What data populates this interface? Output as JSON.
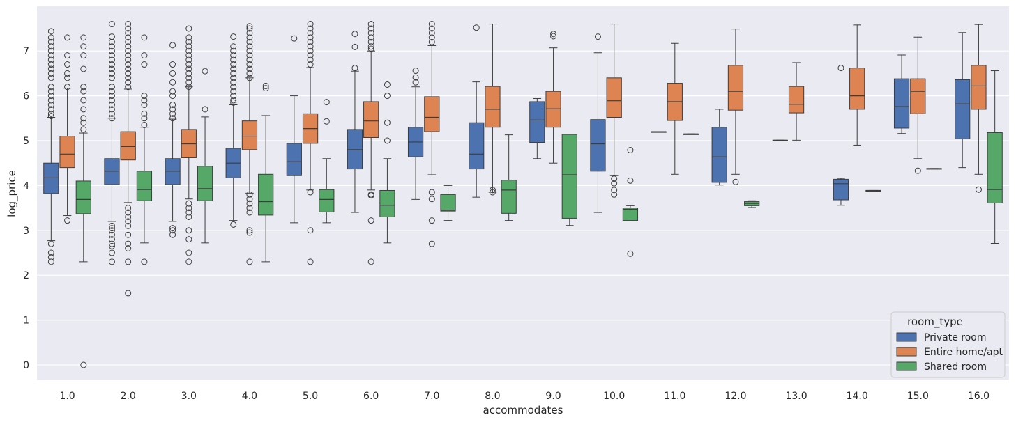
{
  "chart_data": {
    "type": "boxplot",
    "xlabel": "accommodates",
    "ylabel": "log_price",
    "ylim": [
      -0.35,
      7.9
    ],
    "yticks": [
      0,
      1,
      2,
      3,
      4,
      5,
      6,
      7
    ],
    "categories": [
      "1.0",
      "2.0",
      "3.0",
      "4.0",
      "5.0",
      "6.0",
      "7.0",
      "8.0",
      "9.0",
      "10.0",
      "11.0",
      "12.0",
      "13.0",
      "14.0",
      "15.0",
      "16.0"
    ],
    "legend": {
      "title": "room_type",
      "position": "lower-right"
    },
    "colors": {
      "background": "#eaeaf2",
      "grid": "#ffffff",
      "median": "#3d3d3d"
    },
    "series": [
      {
        "name": "Private room",
        "color": "#4c72b0",
        "boxes": [
          {
            "whislo": 2.77,
            "q1": 3.82,
            "med": 4.17,
            "q3": 4.5,
            "whishi": 5.52,
            "fliers": [
              2.3,
              2.4,
              2.5,
              2.7,
              5.55,
              5.6,
              5.7,
              5.8,
              5.9,
              6.0,
              6.1,
              6.2,
              6.4,
              6.5,
              6.6,
              6.7,
              6.8,
              6.9,
              7.0,
              7.1,
              7.2,
              7.3,
              7.44
            ]
          },
          {
            "whislo": 3.2,
            "q1": 4.02,
            "med": 4.32,
            "q3": 4.6,
            "whishi": 5.5,
            "fliers": [
              2.3,
              2.5,
              2.65,
              2.7,
              2.8,
              2.9,
              3.0,
              3.05,
              3.1,
              5.5,
              5.6,
              5.7,
              5.8,
              5.9,
              6.0,
              6.1,
              6.2,
              6.4,
              6.5,
              6.6,
              6.7,
              6.8,
              6.9,
              7.0,
              7.1,
              7.2,
              7.32,
              7.6
            ]
          },
          {
            "whislo": 3.2,
            "q1": 4.02,
            "med": 4.32,
            "q3": 4.6,
            "whishi": 5.48,
            "fliers": [
              2.9,
              3.0,
              3.05,
              5.5,
              5.6,
              5.7,
              5.8,
              6.0,
              6.1,
              6.3,
              6.5,
              6.7,
              7.13
            ]
          },
          {
            "whislo": 3.22,
            "q1": 4.17,
            "med": 4.5,
            "q3": 4.83,
            "whishi": 5.8,
            "fliers": [
              3.13,
              5.85,
              5.9,
              6.0,
              6.1,
              6.2,
              6.3,
              6.4,
              6.5,
              6.6,
              6.7,
              6.8,
              6.9,
              7.0,
              7.1,
              7.32
            ]
          },
          {
            "whislo": 3.17,
            "q1": 4.22,
            "med": 4.53,
            "q3": 4.94,
            "whishi": 6.0,
            "fliers": [
              7.28
            ]
          },
          {
            "whislo": 3.4,
            "q1": 4.37,
            "med": 4.8,
            "q3": 5.25,
            "whishi": 6.55,
            "fliers": [
              6.62,
              7.09,
              7.38
            ]
          },
          {
            "whislo": 3.69,
            "q1": 4.64,
            "med": 4.97,
            "q3": 5.3,
            "whishi": 6.2,
            "fliers": [
              6.3,
              6.41,
              6.56
            ]
          },
          {
            "whislo": 3.74,
            "q1": 4.37,
            "med": 4.7,
            "q3": 5.4,
            "whishi": 6.31,
            "fliers": [
              7.52
            ]
          },
          {
            "whislo": 4.6,
            "q1": 4.96,
            "med": 5.46,
            "q3": 5.87,
            "whishi": 5.94,
            "fliers": []
          },
          {
            "whislo": 3.4,
            "q1": 4.32,
            "med": 4.93,
            "q3": 5.47,
            "whishi": 6.96,
            "fliers": [
              7.32
            ]
          },
          {
            "whislo": 5.2,
            "q1": 5.2,
            "med": 5.2,
            "q3": 5.2,
            "whishi": 5.2,
            "fliers": []
          },
          {
            "whislo": 4.01,
            "q1": 4.07,
            "med": 4.64,
            "q3": 5.3,
            "whishi": 5.7,
            "fliers": []
          },
          {
            "whislo": 5.01,
            "q1": 5.01,
            "med": 5.01,
            "q3": 5.01,
            "whishi": 5.01,
            "fliers": []
          },
          {
            "whislo": 3.56,
            "q1": 3.68,
            "med": 4.04,
            "q3": 4.14,
            "whishi": 4.16,
            "fliers": [
              6.62
            ]
          },
          {
            "whislo": 5.16,
            "q1": 5.28,
            "med": 5.76,
            "q3": 6.38,
            "whishi": 6.91,
            "fliers": []
          },
          {
            "whislo": 4.4,
            "q1": 5.04,
            "med": 5.82,
            "q3": 6.36,
            "whishi": 7.41,
            "fliers": []
          }
        ]
      },
      {
        "name": "Entire home/apt",
        "color": "#dd8452",
        "boxes": [
          {
            "whislo": 3.33,
            "q1": 4.4,
            "med": 4.7,
            "q3": 5.1,
            "whishi": 6.17,
            "fliers": [
              3.22,
              6.2,
              6.4,
              6.5,
              6.7,
              6.9,
              7.3
            ]
          },
          {
            "whislo": 3.62,
            "q1": 4.57,
            "med": 4.87,
            "q3": 5.2,
            "whishi": 6.15,
            "fliers": [
              1.6,
              2.3,
              2.6,
              2.7,
              2.9,
              3.1,
              3.2,
              3.3,
              3.4,
              3.5,
              6.2,
              6.3,
              6.4,
              6.5,
              6.6,
              6.7,
              6.8,
              6.9,
              7.0,
              7.1,
              7.2,
              7.3,
              7.4,
              7.5,
              7.6
            ]
          },
          {
            "whislo": 3.7,
            "q1": 4.62,
            "med": 4.93,
            "q3": 5.25,
            "whishi": 6.2,
            "fliers": [
              2.3,
              2.5,
              2.8,
              3.0,
              3.3,
              3.4,
              3.5,
              3.6,
              6.2,
              6.3,
              6.4,
              6.5,
              6.6,
              6.7,
              6.8,
              6.9,
              7.0,
              7.1,
              7.2,
              7.3,
              7.5
            ]
          },
          {
            "whislo": 3.83,
            "q1": 4.8,
            "med": 5.1,
            "q3": 5.44,
            "whishi": 6.4,
            "fliers": [
              2.3,
              2.95,
              3.0,
              3.4,
              3.5,
              3.6,
              3.7,
              3.8,
              6.4,
              6.5,
              6.6,
              6.7,
              6.8,
              6.9,
              7.0,
              7.1,
              7.2,
              7.3,
              7.4,
              7.5,
              7.55
            ]
          },
          {
            "whislo": 3.9,
            "q1": 4.94,
            "med": 5.27,
            "q3": 5.6,
            "whishi": 6.63,
            "fliers": [
              2.3,
              3.0,
              3.85,
              6.7,
              6.8,
              6.9,
              7.0,
              7.1,
              7.2,
              7.3,
              7.4,
              7.5,
              7.6
            ]
          },
          {
            "whislo": 3.9,
            "q1": 5.07,
            "med": 5.44,
            "q3": 5.87,
            "whishi": 7.0,
            "fliers": [
              2.3,
              3.22,
              3.78,
              3.8,
              7.05,
              7.1,
              7.2,
              7.3,
              7.4,
              7.5,
              7.6
            ]
          },
          {
            "whislo": 4.24,
            "q1": 5.2,
            "med": 5.52,
            "q3": 5.98,
            "whishi": 7.12,
            "fliers": [
              2.7,
              3.22,
              3.7,
              3.85,
              7.2,
              7.3,
              7.4,
              7.5,
              7.6
            ]
          },
          {
            "whislo": 3.85,
            "q1": 5.3,
            "med": 5.7,
            "q3": 6.21,
            "whishi": 7.6,
            "fliers": [
              3.85,
              3.9
            ]
          },
          {
            "whislo": 4.5,
            "q1": 5.3,
            "med": 5.71,
            "q3": 6.1,
            "whishi": 7.07,
            "fliers": [
              7.33,
              7.38
            ]
          },
          {
            "whislo": 4.22,
            "q1": 5.52,
            "med": 5.89,
            "q3": 6.4,
            "whishi": 7.6,
            "fliers": [
              3.8,
              3.9,
              4.05,
              4.15
            ]
          },
          {
            "whislo": 4.25,
            "q1": 5.45,
            "med": 5.87,
            "q3": 6.28,
            "whishi": 7.17,
            "fliers": []
          },
          {
            "whislo": 4.25,
            "q1": 5.68,
            "med": 6.1,
            "q3": 6.68,
            "whishi": 7.49,
            "fliers": [
              4.08
            ]
          },
          {
            "whislo": 5.01,
            "q1": 5.62,
            "med": 5.81,
            "q3": 6.21,
            "whishi": 6.74,
            "fliers": []
          },
          {
            "whislo": 4.9,
            "q1": 5.7,
            "med": 6.0,
            "q3": 6.62,
            "whishi": 7.58,
            "fliers": []
          },
          {
            "whislo": 4.6,
            "q1": 5.6,
            "med": 6.1,
            "q3": 6.38,
            "whishi": 7.31,
            "fliers": [
              4.33
            ]
          },
          {
            "whislo": 4.25,
            "q1": 5.7,
            "med": 6.22,
            "q3": 6.68,
            "whishi": 7.59,
            "fliers": [
              3.91
            ]
          }
        ]
      },
      {
        "name": "Shared room",
        "color": "#55a868",
        "boxes": [
          {
            "whislo": 2.3,
            "q1": 3.37,
            "med": 3.69,
            "q3": 4.1,
            "whishi": 5.17,
            "fliers": [
              0.0,
              5.25,
              5.4,
              5.5,
              5.7,
              5.9,
              6.1,
              6.2,
              6.6,
              6.9,
              7.1,
              7.3
            ]
          },
          {
            "whislo": 2.72,
            "q1": 3.66,
            "med": 3.91,
            "q3": 4.32,
            "whishi": 5.3,
            "fliers": [
              2.3,
              5.35,
              5.5,
              5.6,
              5.8,
              5.9,
              6.0,
              6.7,
              6.9,
              7.3
            ]
          },
          {
            "whislo": 2.72,
            "q1": 3.66,
            "med": 3.93,
            "q3": 4.43,
            "whishi": 5.53,
            "fliers": [
              5.7,
              6.55
            ]
          },
          {
            "whislo": 2.3,
            "q1": 3.34,
            "med": 3.64,
            "q3": 4.25,
            "whishi": 5.56,
            "fliers": [
              6.17,
              6.22
            ]
          },
          {
            "whislo": 3.17,
            "q1": 3.41,
            "med": 3.69,
            "q3": 3.91,
            "whishi": 4.6,
            "fliers": [
              5.43,
              5.86
            ]
          },
          {
            "whislo": 2.72,
            "q1": 3.3,
            "med": 3.56,
            "q3": 3.89,
            "whishi": 4.6,
            "fliers": [
              5.0,
              5.4,
              6.0,
              6.25
            ]
          },
          {
            "whislo": 3.22,
            "q1": 3.43,
            "med": 3.45,
            "q3": 3.8,
            "whishi": 4.0,
            "fliers": []
          },
          {
            "whislo": 3.22,
            "q1": 3.38,
            "med": 3.9,
            "q3": 4.12,
            "whishi": 5.13,
            "fliers": []
          },
          {
            "whislo": 3.11,
            "q1": 3.27,
            "med": 4.24,
            "q3": 5.14,
            "whishi": 5.14,
            "fliers": []
          },
          {
            "whislo": 3.22,
            "q1": 3.22,
            "med": 3.47,
            "q3": 3.5,
            "whishi": 3.55,
            "fliers": [
              2.48,
              4.11,
              4.79
            ]
          },
          {
            "whislo": 5.15,
            "q1": 5.15,
            "med": 5.15,
            "q3": 5.15,
            "whishi": 5.15,
            "fliers": []
          },
          {
            "whislo": 3.51,
            "q1": 3.55,
            "med": 3.6,
            "q3": 3.64,
            "whishi": 3.66,
            "fliers": []
          },
          null,
          {
            "whislo": 3.89,
            "q1": 3.89,
            "med": 3.89,
            "q3": 3.89,
            "whishi": 3.89,
            "fliers": []
          },
          {
            "whislo": 4.38,
            "q1": 4.38,
            "med": 4.38,
            "q3": 4.38,
            "whishi": 4.38,
            "fliers": []
          },
          {
            "whislo": 2.71,
            "q1": 3.61,
            "med": 3.91,
            "q3": 5.18,
            "whishi": 6.56,
            "fliers": []
          }
        ]
      }
    ]
  }
}
